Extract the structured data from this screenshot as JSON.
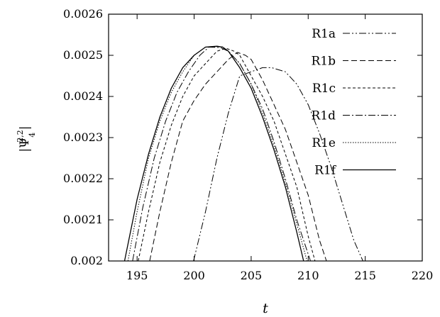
{
  "chart_data": {
    "type": "line",
    "title": "",
    "xlabel": "t",
    "ylabel": "|Ψ",
    "ylabel_superscript": "2,2",
    "ylabel_subscript": "4",
    "ylabel_close": "|",
    "xlim": [
      192.5,
      220
    ],
    "ylim": [
      0.002,
      0.0026
    ],
    "x_ticks": [
      195,
      200,
      205,
      210,
      215,
      220
    ],
    "x_tick_labels": [
      "195",
      "200",
      "205",
      "210",
      "215",
      "220"
    ],
    "y_ticks": [
      0.002,
      0.0021,
      0.0022,
      0.0023,
      0.0024,
      0.0025,
      0.0026
    ],
    "y_tick_labels": [
      "0.002",
      "0.0021",
      "0.0022",
      "0.0023",
      "0.0024",
      "0.0025",
      "0.0026"
    ],
    "grid": false,
    "legend_position": "top-right",
    "series": [
      {
        "name": "R1a",
        "dash": "10 3 2 3 2 3",
        "x": [
          199.95,
          201.0,
          202.0,
          203.0,
          204.0,
          205.0,
          206.0,
          206.8,
          208.0,
          209.0,
          210.0,
          211.0,
          212.0,
          213.0,
          214.0,
          214.8
        ],
        "y": [
          0.002,
          0.00212,
          0.00225,
          0.00236,
          0.00245,
          0.00246,
          0.00247,
          0.00247,
          0.00246,
          0.00243,
          0.00238,
          0.00231,
          0.00223,
          0.00214,
          0.00205,
          0.002
        ]
      },
      {
        "name": "R1b",
        "dash": "8 4",
        "x": [
          196.1,
          197.0,
          198.0,
          199.0,
          200.0,
          201.0,
          202.0,
          203.0,
          203.8,
          204.5,
          205.0,
          206.0,
          207.0,
          208.0,
          209.0,
          210.0,
          211.0,
          211.6
        ],
        "y": [
          0.002,
          0.00212,
          0.00224,
          0.00234,
          0.00239,
          0.00243,
          0.00246,
          0.00249,
          0.002507,
          0.0025,
          0.00249,
          0.00244,
          0.00238,
          0.00232,
          0.00224,
          0.00216,
          0.00205,
          0.002
        ]
      },
      {
        "name": "R1c",
        "dash": "4 3",
        "x": [
          195.1,
          196.0,
          197.0,
          198.0,
          199.0,
          200.0,
          201.0,
          202.0,
          202.8,
          203.5,
          204.0,
          205.0,
          206.0,
          207.0,
          208.0,
          209.0,
          210.0,
          210.6
        ],
        "y": [
          0.002,
          0.00212,
          0.00224,
          0.00233,
          0.0024,
          0.00245,
          0.00248,
          0.00251,
          0.002517,
          0.00251,
          0.0025,
          0.00245,
          0.0024,
          0.00234,
          0.00226,
          0.00218,
          0.00206,
          0.002
        ]
      },
      {
        "name": "R1d",
        "dash": "10 3 2 3",
        "x": [
          194.6,
          195.5,
          196.5,
          197.5,
          198.5,
          199.5,
          200.5,
          201.3,
          202.3,
          203.0,
          204.0,
          205.0,
          206.0,
          207.0,
          208.0,
          209.0,
          210.2
        ],
        "y": [
          0.002,
          0.00213,
          0.00225,
          0.00234,
          0.00241,
          0.00246,
          0.0025,
          0.00252,
          0.002519,
          0.00251,
          0.00248,
          0.00243,
          0.00237,
          0.00229,
          0.0022,
          0.0021,
          0.002
        ]
      },
      {
        "name": "R1e",
        "dash": "1.5 2",
        "x": [
          194.2,
          195.0,
          196.0,
          197.0,
          198.0,
          199.0,
          200.0,
          201.0,
          202.0,
          202.5,
          203.0,
          204.0,
          205.0,
          206.0,
          207.0,
          208.0,
          209.0,
          209.9
        ],
        "y": [
          0.002,
          0.00212,
          0.00225,
          0.00234,
          0.00241,
          0.00246,
          0.0025,
          0.00252,
          0.002521,
          0.00252,
          0.00251,
          0.00248,
          0.00243,
          0.00236,
          0.00228,
          0.00219,
          0.00209,
          0.002
        ]
      },
      {
        "name": "R1f",
        "dash": "",
        "x": [
          193.9,
          195.0,
          196.0,
          197.0,
          198.0,
          199.0,
          200.0,
          201.0,
          202.0,
          202.5,
          203.0,
          204.0,
          205.0,
          206.0,
          207.0,
          208.0,
          209.0,
          209.6
        ],
        "y": [
          0.002,
          0.00215,
          0.00226,
          0.00235,
          0.00242,
          0.00247,
          0.0025,
          0.00252,
          0.002522,
          0.00252,
          0.00251,
          0.00247,
          0.00242,
          0.00235,
          0.00227,
          0.00218,
          0.00207,
          0.002
        ]
      }
    ]
  }
}
